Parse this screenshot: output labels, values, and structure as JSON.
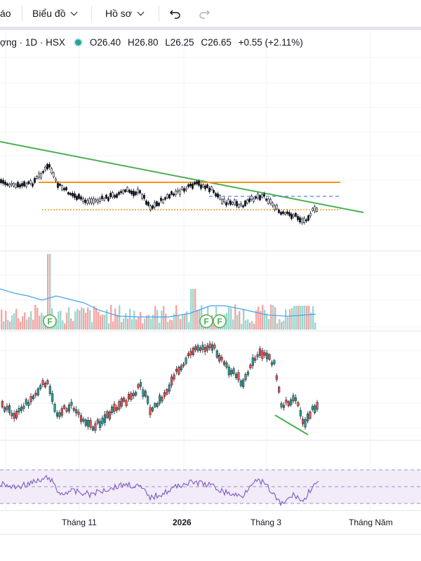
{
  "toolbar": {
    "cut_left_label": "áo",
    "chart_menu_label": "Biểu đồ",
    "profile_menu_label": "Hồ sơ",
    "undo_icon": "undo-icon",
    "redo_icon": "redo-icon"
  },
  "legend": {
    "symbol_text": "ợng · 1D · HSX",
    "open": "O26.40",
    "high": "H26.80",
    "low": "L26.25",
    "close": "C26.65",
    "change": "+0.55 (+2.11%)",
    "status_color": "#26a69a"
  },
  "x_axis": {
    "labels": [
      "Tháng 11",
      "2026",
      "Tháng 3",
      "Tháng Năm"
    ]
  },
  "events": {
    "marker_label": "F",
    "count": 3
  },
  "colors": {
    "up": "#26a69a",
    "down": "#ef5350",
    "candle": "#131722",
    "trendline": "#4caf50",
    "level": "#f7931a",
    "dash_level": "#2962ff",
    "volume_ma": "#42a5f5",
    "rsi": "#7e57c2"
  }
}
